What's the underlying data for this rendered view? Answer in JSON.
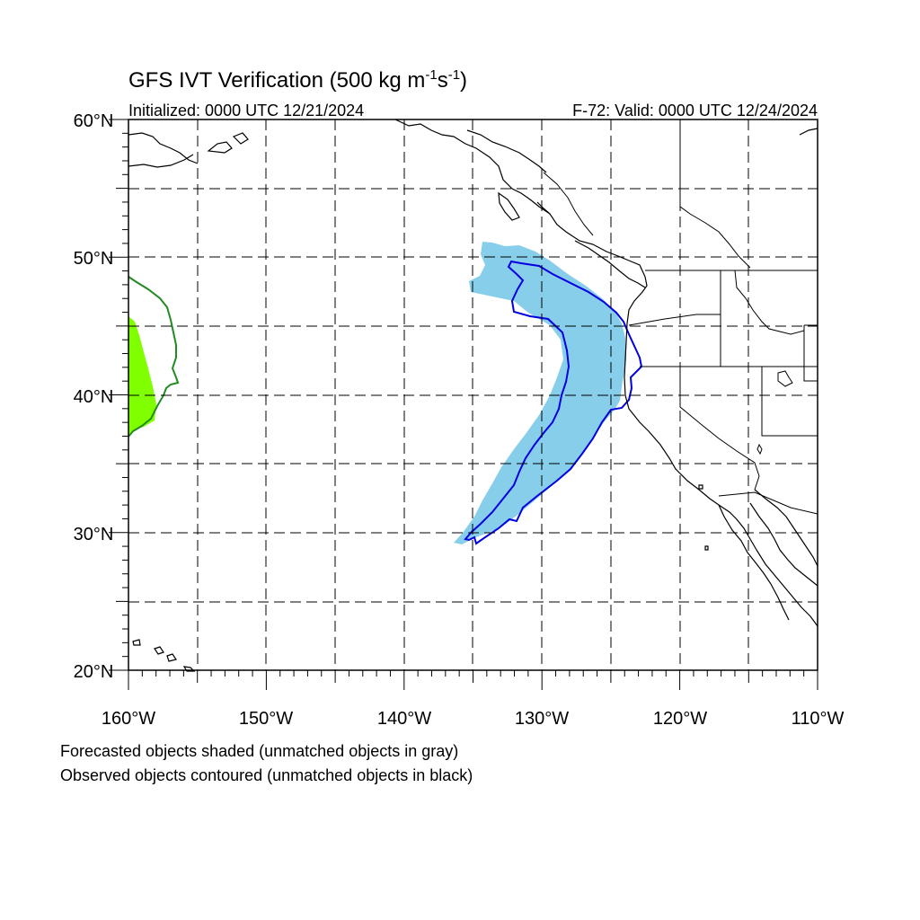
{
  "title": {
    "main": "GFS IVT Verification (500 kg m",
    "sup1": "-1",
    "mid": "s",
    "sup2": "-1",
    "end": ")"
  },
  "subtitle_left": "Initialized: 0000 UTC 12/21/2024",
  "subtitle_right": "F-72: Valid: 0000 UTC 12/24/2024",
  "lat_labels": [
    "60°N",
    "50°N",
    "40°N",
    "30°N",
    "20°N"
  ],
  "lon_labels": [
    "160°W",
    "150°W",
    "140°W",
    "130°W",
    "120°W",
    "110°W"
  ],
  "notes": [
    "Forecasted objects shaded (unmatched objects in gray)",
    "Observed objects contoured (unmatched objects in black)"
  ],
  "map": {
    "lon_range": [
      -160,
      -110
    ],
    "lat_range": [
      20,
      60
    ],
    "gridlines": "dashed every 5°",
    "colors": {
      "forecast_object_1": "#87ceeb",
      "observed_contour_1": "#0000e0",
      "forecast_object_2": "#80ff00",
      "observed_contour_2": "#228b22",
      "coastlines": "#000000"
    }
  }
}
